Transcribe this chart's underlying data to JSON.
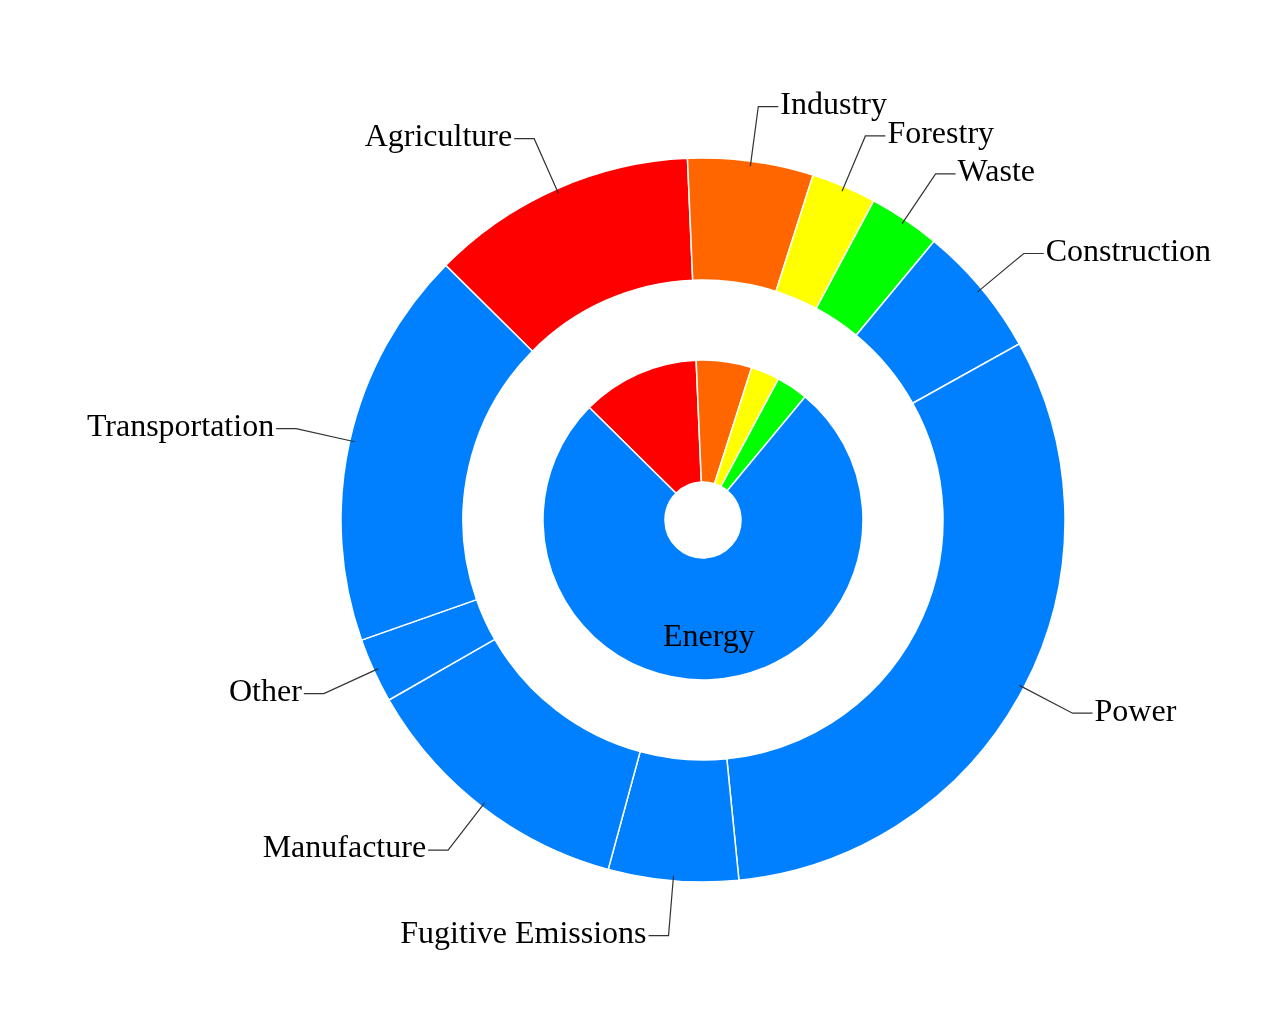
{
  "chart_data": [
    {
      "type": "donut",
      "categories": [
        null,
        null,
        null,
        null,
        "Energy"
      ],
      "values": [
        11.9,
        5.6,
        2.9,
        3.2,
        76.4
      ],
      "colors": [
        "#ff0000",
        "#ff6600",
        "#ffff00",
        "#00ff00",
        "#0080ff"
      ]
    },
    {
      "type": "donut",
      "categories": [
        "Agriculture",
        "Industry",
        "Forestry",
        "Waste",
        "Construction",
        "Power",
        "Fugitive Emissions",
        "Manufacture",
        "Other",
        "Transportation"
      ],
      "values": [
        11.9,
        5.6,
        2.9,
        3.2,
        5.9,
        31.5,
        5.8,
        12.5,
        2.9,
        17.8
      ],
      "colors": [
        "#ff0000",
        "#ff6600",
        "#ffff00",
        "#00ff00",
        "#0080ff",
        "#0080ff",
        "#0080ff",
        "#0080ff",
        "#0080ff",
        "#0080ff"
      ]
    }
  ]
}
